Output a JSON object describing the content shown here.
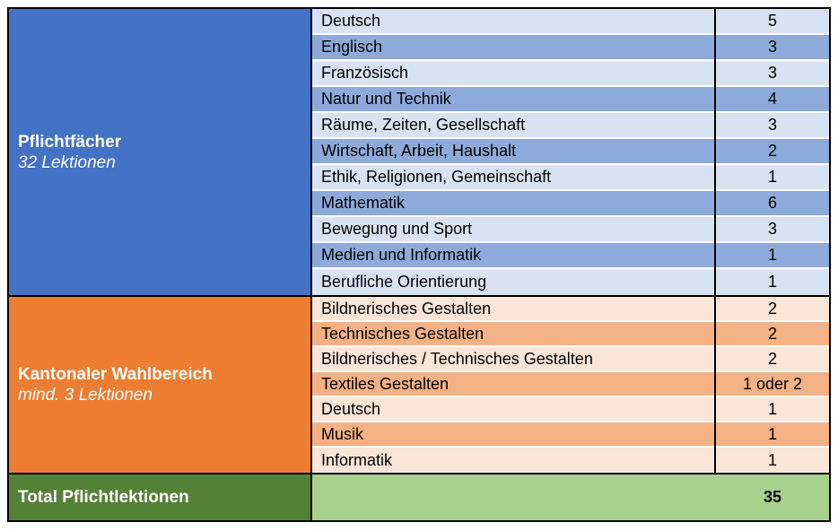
{
  "colors": {
    "border_black": "#000000",
    "row_separator": "#FFFFFF",
    "header_text": "#FFFFFF",
    "row_text": "#000000",
    "pflicht_header_bg": "#4472C4",
    "pflicht_row_odd": "#8EAADB",
    "pflicht_row_even": "#D9E2F3",
    "wahl_header_bg": "#ED7D31",
    "wahl_row_odd": "#F4B183",
    "wahl_row_even": "#FBE5D6",
    "total_label_bg": "#538135",
    "total_value_bg": "#A9D18E"
  },
  "table": {
    "sections": [
      {
        "label": "Pflichtfächer",
        "sublabel": "32 Lektionen",
        "rows": [
          {
            "subject": "Deutsch",
            "lessons": "5"
          },
          {
            "subject": "Englisch",
            "lessons": "3"
          },
          {
            "subject": "Französisch",
            "lessons": "3"
          },
          {
            "subject": "Natur und Technik",
            "lessons": "4"
          },
          {
            "subject": "Räume, Zeiten, Gesellschaft",
            "lessons": "3"
          },
          {
            "subject": "Wirtschaft, Arbeit, Haushalt",
            "lessons": "2"
          },
          {
            "subject": "Ethik, Religionen, Gemeinschaft",
            "lessons": "1"
          },
          {
            "subject": "Mathematik",
            "lessons": "6"
          },
          {
            "subject": "Bewegung und Sport",
            "lessons": "3"
          },
          {
            "subject": "Medien und Informatik",
            "lessons": "1"
          },
          {
            "subject": "Berufliche Orientierung",
            "lessons": "1"
          }
        ]
      },
      {
        "label": "Kantonaler Wahlbereich",
        "sublabel": "mind. 3 Lektionen",
        "rows": [
          {
            "subject": "Bildnerisches Gestalten",
            "lessons": "2"
          },
          {
            "subject": "Technisches Gestalten",
            "lessons": "2"
          },
          {
            "subject": "Bildnerisches / Technisches Gestalten",
            "lessons": "2"
          },
          {
            "subject": "Textiles Gestalten",
            "lessons": "1 oder 2"
          },
          {
            "subject": "Deutsch",
            "lessons": "1"
          },
          {
            "subject": "Musik",
            "lessons": "1"
          },
          {
            "subject": "Informatik",
            "lessons": "1"
          }
        ]
      }
    ],
    "total": {
      "label": "Total Pflichtlektionen",
      "value": "35"
    }
  }
}
